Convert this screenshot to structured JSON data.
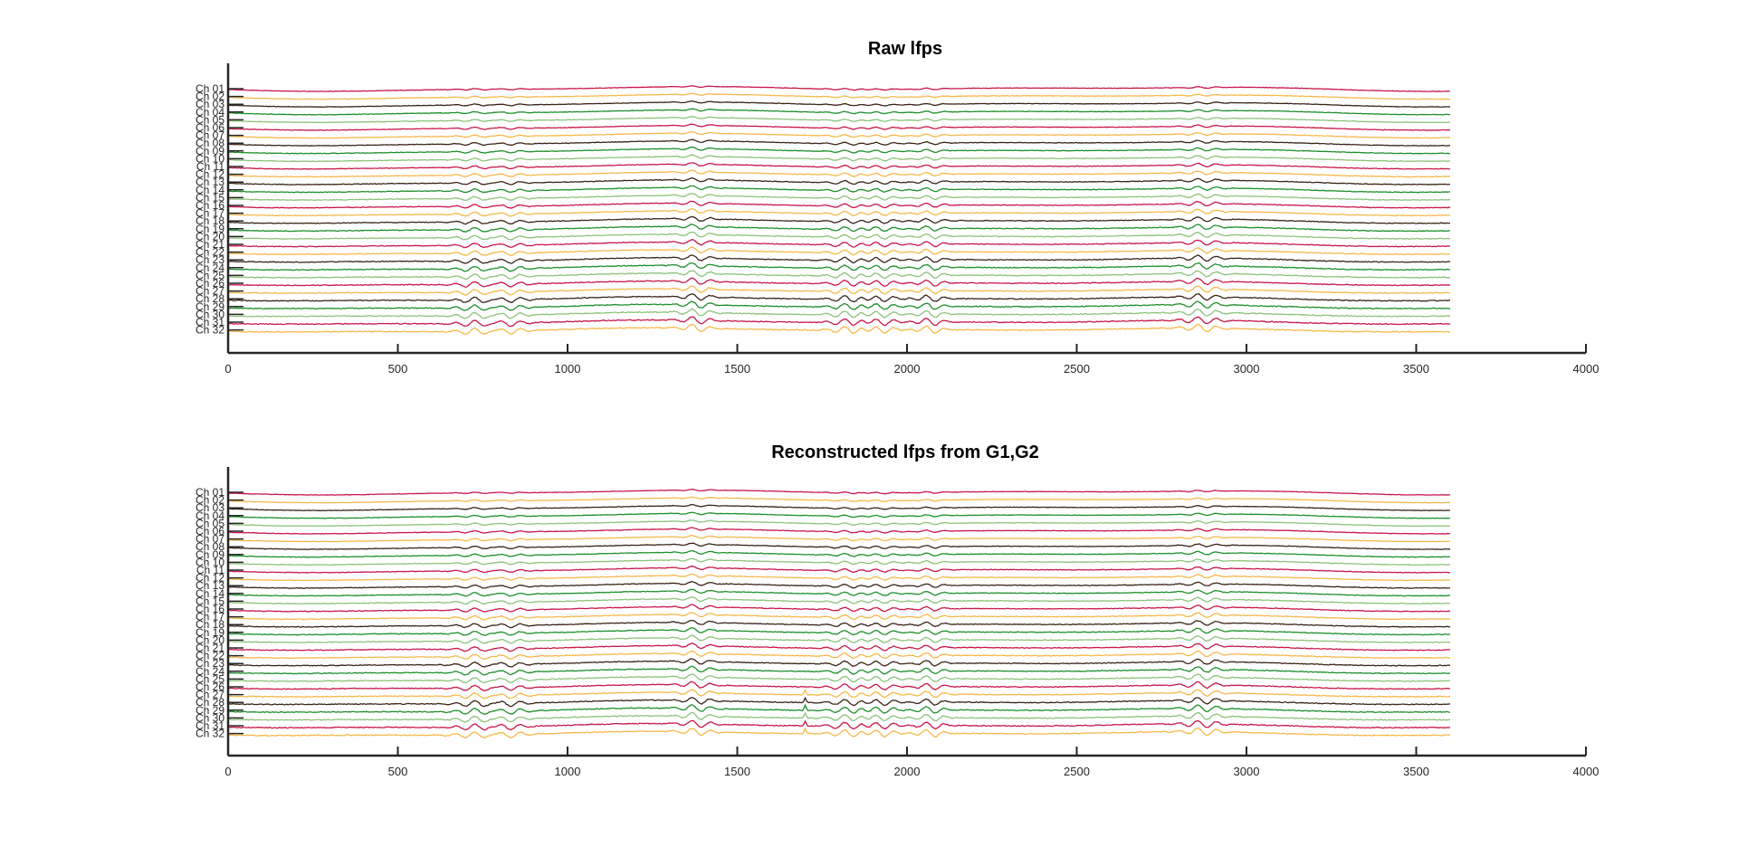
{
  "chart_data": [
    {
      "type": "line",
      "title": "Raw lfps",
      "xlabel": "",
      "ylabel": "",
      "xlim": [
        0,
        4000
      ],
      "x_ticks": [
        0,
        500,
        1000,
        1500,
        2000,
        2500,
        3000,
        3500,
        4000
      ],
      "x_range": [
        0,
        3600
      ],
      "channels": [
        "Ch 01",
        "Ch 02",
        "Ch 03",
        "Ch 04",
        "Ch 05",
        "Ch 06",
        "Ch 07",
        "Ch 08",
        "Ch 09",
        "Ch 10",
        "Ch 11",
        "Ch 12",
        "Ch 13",
        "Ch 14",
        "Ch 15",
        "Ch 16",
        "Ch 17",
        "Ch 18",
        "Ch 19",
        "Ch 20",
        "Ch 21",
        "Ch 22",
        "Ch 23",
        "Ch 24",
        "Ch 25",
        "Ch 26",
        "Ch 27",
        "Ch 28",
        "Ch 29",
        "Ch 30",
        "Ch 31",
        "Ch 32"
      ],
      "grid": false,
      "legend": "none"
    },
    {
      "type": "line",
      "title": "Reconstructed lfps from G1,G2",
      "xlabel": "",
      "ylabel": "",
      "xlim": [
        0,
        4000
      ],
      "x_ticks": [
        0,
        500,
        1000,
        1500,
        2000,
        2500,
        3000,
        3500,
        4000
      ],
      "x_range": [
        0,
        3600
      ],
      "channels": [
        "Ch 01",
        "Ch 02",
        "Ch 03",
        "Ch 04",
        "Ch 05",
        "Ch 06",
        "Ch 07",
        "Ch 08",
        "Ch 09",
        "Ch 10",
        "Ch 11",
        "Ch 12",
        "Ch 13",
        "Ch 14",
        "Ch 15",
        "Ch 16",
        "Ch 17",
        "Ch 18",
        "Ch 19",
        "Ch 20",
        "Ch 21",
        "Ch 22",
        "Ch 23",
        "Ch 24",
        "Ch 25",
        "Ch 26",
        "Ch 27",
        "Ch 28",
        "Ch 29",
        "Ch 30",
        "Ch 31",
        "Ch 32"
      ],
      "grid": false,
      "legend": "none"
    }
  ],
  "colors": {
    "trace_cycle": [
      "#c8174a",
      "#f5b94a",
      "#3a2418",
      "#1f8f2a",
      "#8bc37a"
    ],
    "axis": "#262626"
  }
}
